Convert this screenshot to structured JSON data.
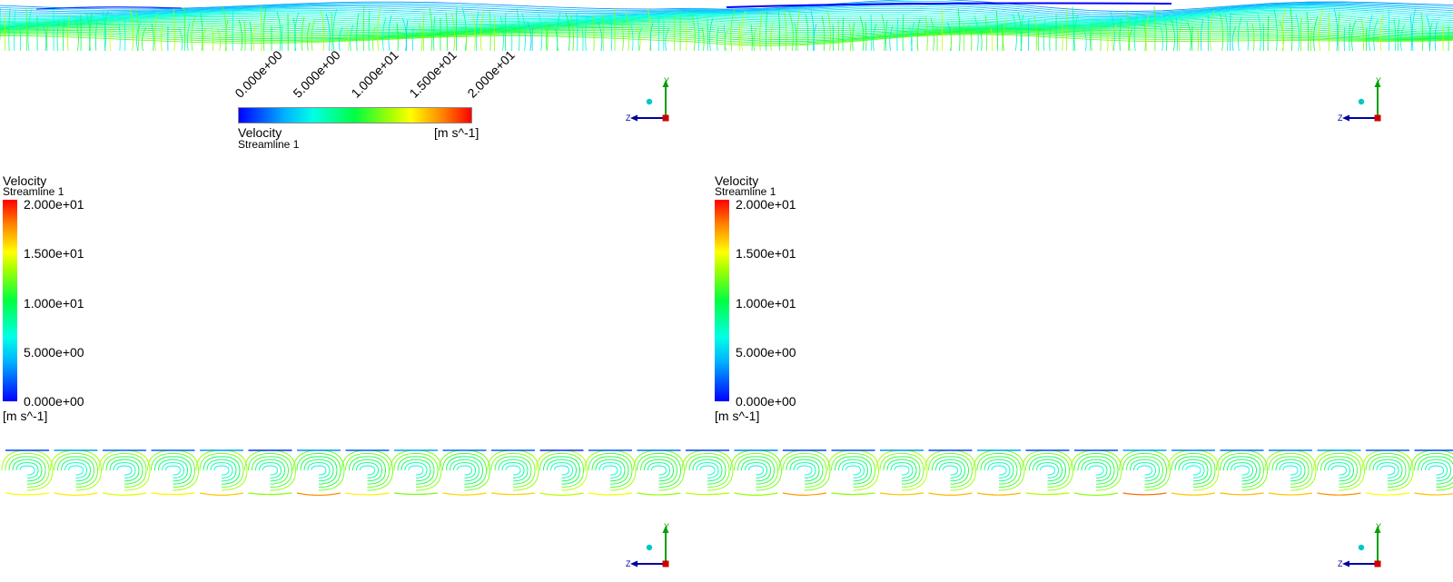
{
  "legends": {
    "horizontal": {
      "variable": "Velocity",
      "subtitle": "Streamline 1",
      "units": "[m s^-1]",
      "ticks": [
        "0.000e+00",
        "5.000e+00",
        "1.000e+01",
        "1.500e+01",
        "2.000e+01"
      ]
    },
    "left": {
      "variable": "Velocity",
      "subtitle": "Streamline 1",
      "units": "[m s^-1]",
      "ticks": [
        "2.000e+01",
        "1.500e+01",
        "1.000e+01",
        "5.000e+00",
        "0.000e+00"
      ]
    },
    "right": {
      "variable": "Velocity",
      "subtitle": "Streamline 1",
      "units": "[m s^-1]",
      "ticks": [
        "2.000e+01",
        "1.500e+01",
        "1.000e+01",
        "5.000e+00",
        "0.000e+00"
      ]
    }
  },
  "axis_triad": {
    "y_label": "Y",
    "z_label": "Z"
  },
  "colors": {
    "low": "#0000ff",
    "mid": "#00ff40",
    "high": "#ff0000",
    "triad_y": "#00a000",
    "triad_z": "#0000a0",
    "triad_x": "#cc0000",
    "triad_ball": "#00c8c8"
  }
}
